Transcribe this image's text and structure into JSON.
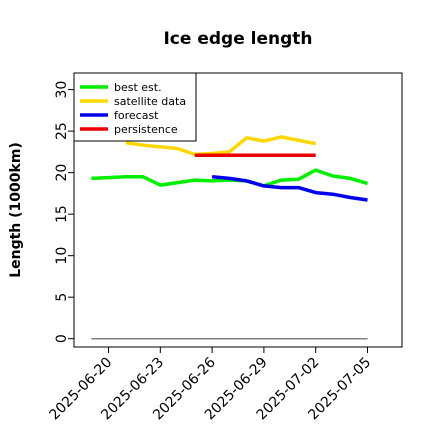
{
  "chart_data": {
    "type": "line",
    "title": "Ice edge length",
    "xlabel": "",
    "ylabel": "Length (1000km)",
    "ylim": [
      -1,
      32
    ],
    "xlim": [
      "2025-06-18",
      "2025-07-07"
    ],
    "yticks": [
      0,
      5,
      10,
      15,
      20,
      25,
      30
    ],
    "xticks": [
      {
        "label": "2025-06-20",
        "color": "#000000"
      },
      {
        "label": "2025-06-23",
        "color": "#000000"
      },
      {
        "label": "2025-06-26",
        "color": "#228b22"
      },
      {
        "label": "2025-06-29",
        "color": "#000000"
      },
      {
        "label": "2025-07-02",
        "color": "#000000"
      },
      {
        "label": "2025-07-05",
        "color": "#000000"
      }
    ],
    "legend_position": "top-left",
    "series": [
      {
        "name": "best est.",
        "color": "#00ee00",
        "x": [
          "2025-06-19",
          "2025-06-20",
          "2025-06-21",
          "2025-06-22",
          "2025-06-23",
          "2025-06-24",
          "2025-06-25",
          "2025-06-26",
          "2025-06-27",
          "2025-06-28",
          "2025-06-29",
          "2025-06-30",
          "2025-07-01",
          "2025-07-02",
          "2025-07-03",
          "2025-07-04",
          "2025-07-05"
        ],
        "y": [
          19.3,
          19.4,
          19.5,
          19.5,
          18.5,
          18.8,
          19.1,
          19.0,
          19.1,
          19.0,
          18.4,
          19.1,
          19.2,
          20.3,
          19.6,
          19.3,
          18.7
        ]
      },
      {
        "name": "satellite data",
        "color": "#ffd700",
        "x": [
          "2025-06-21",
          "2025-06-22",
          "2025-06-23",
          "2025-06-24",
          "2025-06-25",
          "2025-06-26",
          "2025-06-27",
          "2025-06-28",
          "2025-06-29",
          "2025-06-30",
          "2025-07-01",
          "2025-07-02"
        ],
        "y": [
          23.6,
          23.3,
          23.1,
          22.9,
          22.2,
          22.3,
          22.5,
          24.2,
          23.8,
          24.3,
          23.9,
          23.5
        ]
      },
      {
        "name": "forecast",
        "color": "#0000ee",
        "x": [
          "2025-06-26",
          "2025-06-27",
          "2025-06-28",
          "2025-06-29",
          "2025-06-30",
          "2025-07-01",
          "2025-07-02",
          "2025-07-03",
          "2025-07-04",
          "2025-07-05"
        ],
        "y": [
          19.5,
          19.3,
          19.0,
          18.4,
          18.2,
          18.2,
          17.6,
          17.4,
          17.0,
          16.7
        ]
      },
      {
        "name": "persistence",
        "color": "#ee0000",
        "x": [
          "2025-06-25",
          "2025-07-02"
        ],
        "y": [
          22.1,
          22.1
        ]
      }
    ],
    "baseline": {
      "color": "#808080",
      "x": [
        "2025-06-19",
        "2025-07-05"
      ],
      "y": [
        0,
        0
      ]
    }
  }
}
